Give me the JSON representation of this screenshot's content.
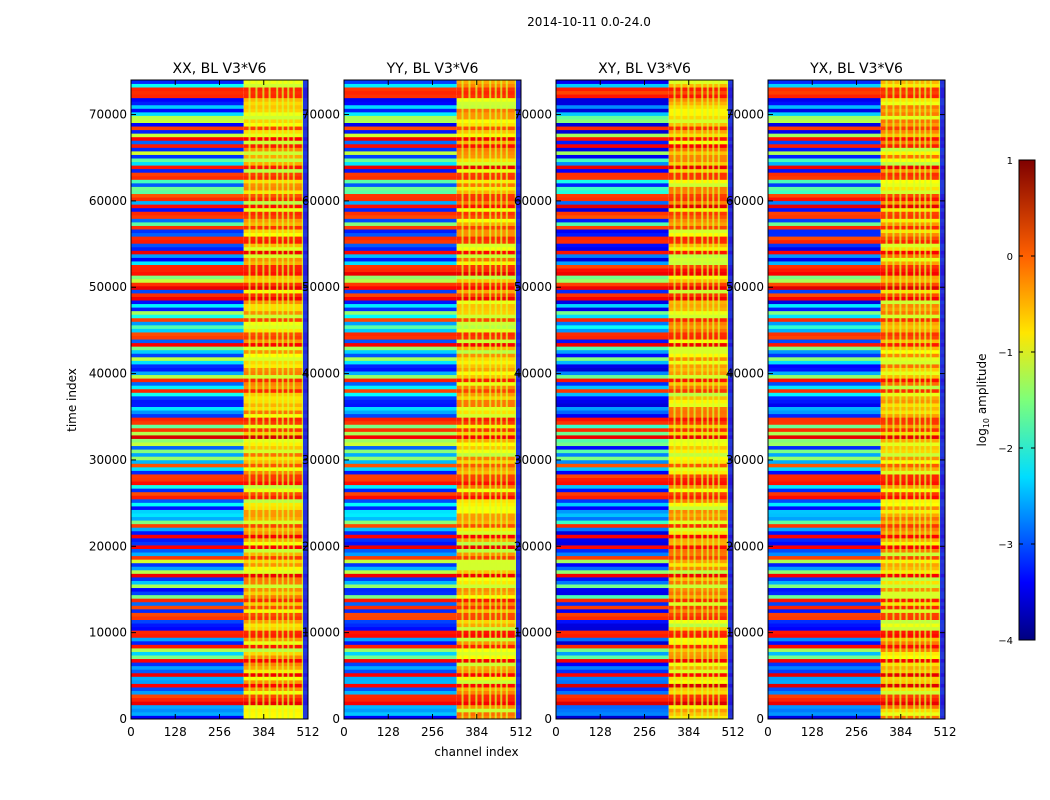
{
  "figure": {
    "suptitle": "2014-10-11 0.0-24.0"
  },
  "chart_data": {
    "type": "heatmap",
    "panels": [
      {
        "title": "XX, BL V3*V6",
        "show_xlabel": false,
        "show_ylabel": true
      },
      {
        "title": "YY, BL V3*V6",
        "show_xlabel": true,
        "show_ylabel": false
      },
      {
        "title": "XY, BL V3*V6",
        "show_xlabel": false,
        "show_ylabel": false
      },
      {
        "title": "YX, BL V3*V6",
        "show_xlabel": false,
        "show_ylabel": false
      }
    ],
    "xlabel": "channel index",
    "ylabel": "time index",
    "xlim": [
      0,
      512
    ],
    "ylim": [
      0,
      74000
    ],
    "xticks": [
      0,
      128,
      256,
      384,
      512
    ],
    "yticks": [
      0,
      10000,
      20000,
      30000,
      40000,
      50000,
      60000,
      70000
    ],
    "colorbar": {
      "label": "log10 amplitude",
      "label_base": "log",
      "label_sub": "10",
      "label_rest": " amplitude",
      "range": [
        -4,
        1
      ],
      "ticks": [
        {
          "value": 1,
          "label": "1"
        },
        {
          "value": 0,
          "label": "0"
        },
        {
          "value": -1,
          "label": "−1"
        },
        {
          "value": -2,
          "label": "−2"
        },
        {
          "value": -3,
          "label": "−3"
        },
        {
          "value": -4,
          "label": "−4"
        }
      ],
      "colormap": "jet"
    },
    "approx_structure": {
      "bright_channel_range": [
        326,
        512
      ],
      "strong_band_times": [
        2500,
        12000,
        13000,
        18500,
        22500,
        28000,
        33500,
        38000,
        44000,
        55500,
        57000,
        63000,
        68500,
        72500
      ]
    }
  }
}
